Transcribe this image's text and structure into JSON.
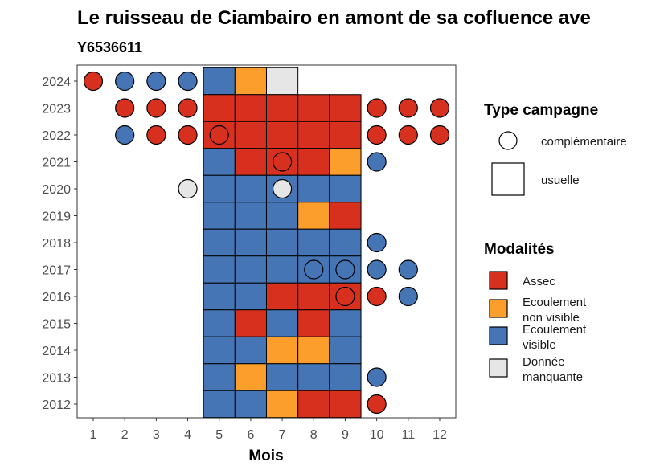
{
  "chart_data": {
    "type": "heatmap",
    "title": "Le ruisseau de Ciambairo en amont de sa cofluence ave",
    "subtitle": "Y6536611",
    "xlabel": "Mois",
    "ylabel": "",
    "x_ticks": [
      "1",
      "2",
      "3",
      "4",
      "5",
      "6",
      "7",
      "8",
      "9",
      "10",
      "11",
      "12"
    ],
    "y_ticks": [
      "2024",
      "2023",
      "2022",
      "2021",
      "2020",
      "2019",
      "2018",
      "2017",
      "2016",
      "2015",
      "2014",
      "2013",
      "2012"
    ],
    "legend_campaign": {
      "title": "Type campagne",
      "items": [
        {
          "label": "complémentaire",
          "shape": "circle"
        },
        {
          "label": "usuelle",
          "shape": "square"
        }
      ]
    },
    "legend_modalites": {
      "title": "Modalités",
      "items": [
        {
          "key": "A",
          "label_lines": [
            "Assec"
          ],
          "color": "#d7301f"
        },
        {
          "key": "N",
          "label_lines": [
            "Ecoulement",
            "non visible"
          ],
          "color": "#fc9e2c"
        },
        {
          "key": "V",
          "label_lines": [
            "Ecoulement",
            "visible"
          ],
          "color": "#4575b4"
        },
        {
          "key": "M",
          "label_lines": [
            "Donnée",
            "manquante"
          ],
          "color": "#e6e6e6"
        }
      ]
    },
    "usuelle": [
      {
        "year": 2024,
        "months": {
          "5": "V",
          "6": "N",
          "7": "M"
        }
      },
      {
        "year": 2023,
        "months": {
          "5": "A",
          "6": "A",
          "7": "A",
          "8": "A",
          "9": "A"
        }
      },
      {
        "year": 2022,
        "months": {
          "5": "A",
          "6": "A",
          "7": "A",
          "8": "A",
          "9": "A"
        }
      },
      {
        "year": 2021,
        "months": {
          "5": "V",
          "6": "A",
          "7": "A",
          "8": "A",
          "9": "N"
        }
      },
      {
        "year": 2020,
        "months": {
          "5": "V",
          "6": "V",
          "7": "V",
          "8": "V",
          "9": "V"
        }
      },
      {
        "year": 2019,
        "months": {
          "5": "V",
          "6": "V",
          "7": "V",
          "8": "N",
          "9": "A"
        }
      },
      {
        "year": 2018,
        "months": {
          "5": "V",
          "6": "V",
          "7": "V",
          "8": "V",
          "9": "V"
        }
      },
      {
        "year": 2017,
        "months": {
          "5": "V",
          "6": "V",
          "7": "V",
          "8": "V",
          "9": "V"
        }
      },
      {
        "year": 2016,
        "months": {
          "5": "V",
          "6": "V",
          "7": "A",
          "8": "A",
          "9": "A"
        }
      },
      {
        "year": 2015,
        "months": {
          "5": "V",
          "6": "A",
          "7": "V",
          "8": "A",
          "9": "V"
        }
      },
      {
        "year": 2014,
        "months": {
          "5": "V",
          "6": "V",
          "7": "N",
          "8": "N",
          "9": "V"
        }
      },
      {
        "year": 2013,
        "months": {
          "5": "V",
          "6": "N",
          "7": "V",
          "8": "V",
          "9": "V"
        }
      },
      {
        "year": 2012,
        "months": {
          "5": "V",
          "6": "V",
          "7": "N",
          "8": "A",
          "9": "A"
        }
      }
    ],
    "complementaire": [
      {
        "year": 2024,
        "months": {
          "1": "A",
          "2": "V",
          "3": "V",
          "4": "V"
        }
      },
      {
        "year": 2023,
        "months": {
          "2": "A",
          "3": "A",
          "4": "A",
          "10": "A",
          "11": "A",
          "12": "A"
        }
      },
      {
        "year": 2022,
        "months": {
          "2": "V",
          "3": "A",
          "4": "A",
          "5": "A",
          "10": "A",
          "11": "A",
          "12": "A"
        }
      },
      {
        "year": 2021,
        "months": {
          "7": "A",
          "10": "V"
        }
      },
      {
        "year": 2020,
        "months": {
          "4": "M",
          "7": "M"
        }
      },
      {
        "year": 2018,
        "months": {
          "10": "V"
        }
      },
      {
        "year": 2017,
        "months": {
          "8": "V",
          "9": "V",
          "10": "V",
          "11": "V"
        }
      },
      {
        "year": 2016,
        "months": {
          "9": "A",
          "10": "A",
          "11": "V"
        }
      },
      {
        "year": 2013,
        "months": {
          "10": "V"
        }
      },
      {
        "year": 2012,
        "months": {
          "10": "A"
        }
      }
    ]
  }
}
